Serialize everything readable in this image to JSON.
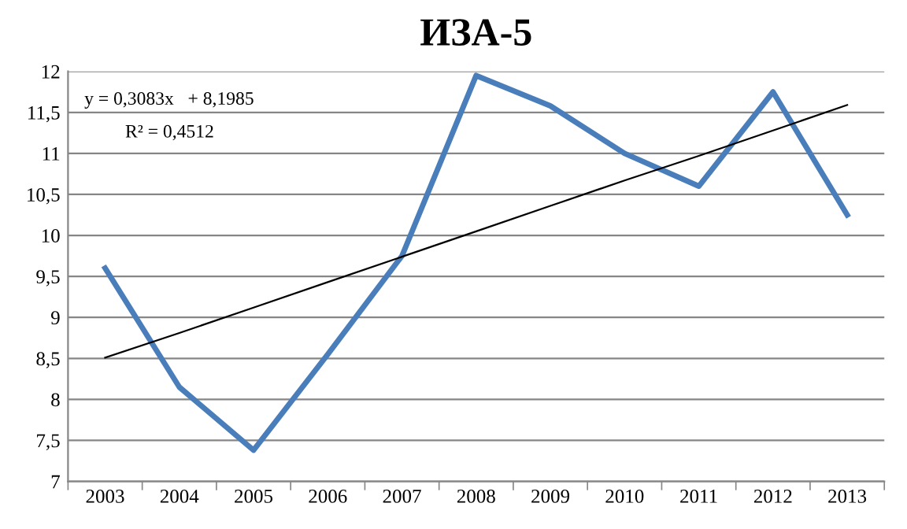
{
  "chart_data": {
    "type": "line",
    "title": "ИЗА-5",
    "categories": [
      "2003",
      "2004",
      "2005",
      "2006",
      "2007",
      "2008",
      "2009",
      "2010",
      "2011",
      "2012",
      "2013"
    ],
    "series": [
      {
        "color": "#4a7ebb",
        "values": [
          9.6,
          8.15,
          7.38,
          8.55,
          9.75,
          11.95,
          11.58,
          11.0,
          10.6,
          11.75,
          10.25
        ]
      },
      {
        "type": "line",
        "color": "#000000",
        "values": [
          8.51,
          8.81,
          9.12,
          9.43,
          9.74,
          10.05,
          10.36,
          10.67,
          10.97,
          11.28,
          11.59
        ]
      }
    ],
    "ylim": [
      7,
      12
    ],
    "yticks": [
      7,
      {
        "value": 7.5,
        "label": "7,5"
      },
      8,
      {
        "value": 8.5,
        "label": "8,5"
      },
      9,
      {
        "value": 9.5,
        "label": "9,5"
      },
      10,
      {
        "value": 10.5,
        "label": "10,5"
      },
      11,
      {
        "value": 11.5,
        "label": "11,5"
      },
      12
    ],
    "grid": "y",
    "legend": false,
    "marker": "none",
    "annotations": [
      "y = 0,3083x   + 8,1985",
      "R² = 0,4512"
    ]
  }
}
